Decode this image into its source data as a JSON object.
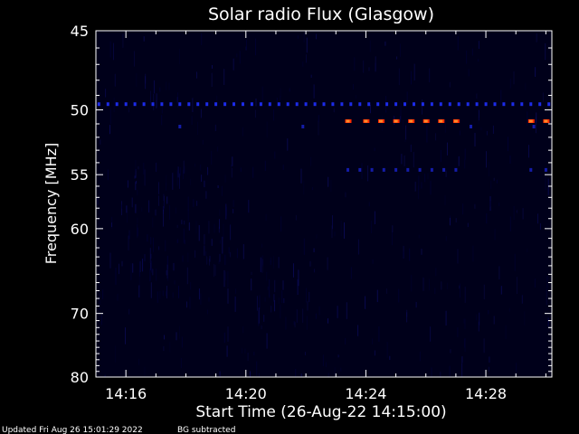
{
  "chart_data": {
    "type": "heatmap",
    "title": "Solar radio Flux (Glasgow)",
    "xlabel": "Start Time (26-Aug-22 14:15:00)",
    "ylabel": "Frequency [MHz]",
    "xlim_minutes_after_start": [
      0,
      15.2
    ],
    "ylim_mhz": [
      45,
      80
    ],
    "y_scale": "reciprocal",
    "y_ticks": [
      45,
      50,
      55,
      60,
      70,
      80
    ],
    "y_tick_labels": [
      "45",
      "50",
      "55",
      "60",
      "70",
      "80"
    ],
    "x_ticks_minutes_after_start": [
      1,
      5,
      9,
      13
    ],
    "x_tick_labels": [
      "14:16",
      "14:20",
      "14:24",
      "14:28"
    ],
    "colors": {
      "background": "#000000",
      "plot_floor": "#00001a",
      "faint_noise": "#000033",
      "channel_blue": "#1c2be8",
      "channel_blue_dim": "#141ca8",
      "burst_red": "#ff2a00",
      "burst_orange": "#ff8a2a",
      "axes": "#ffffff"
    },
    "series": [
      {
        "frequency_mhz": 49.6,
        "color": "channel_blue",
        "minutes_after_start": [
          0.1,
          0.4,
          0.7,
          1.0,
          1.3,
          1.6,
          1.9,
          2.2,
          2.5,
          2.8,
          3.1,
          3.4,
          3.7,
          4.0,
          4.3,
          4.6,
          4.9,
          5.2,
          5.5,
          5.8,
          6.1,
          6.4,
          6.7,
          7.0,
          7.3,
          7.6,
          7.9,
          8.2,
          8.5,
          8.8,
          9.1,
          9.4,
          9.7,
          10.0,
          10.3,
          10.6,
          10.9,
          11.2,
          11.5,
          11.8,
          12.1,
          12.4,
          12.7,
          13.0,
          13.3,
          13.6,
          13.9,
          14.2,
          14.5,
          14.8,
          15.1
        ]
      },
      {
        "frequency_mhz": 50.8,
        "color": "burst_orange",
        "minutes_after_start": [
          8.4,
          9.0,
          9.5,
          10.0,
          10.5,
          11.0,
          11.5,
          12.0,
          14.5,
          15.0
        ]
      },
      {
        "frequency_mhz": 54.6,
        "color": "channel_blue_dim",
        "minutes_after_start": [
          8.4,
          8.8,
          9.2,
          9.6,
          10.0,
          10.4,
          10.8,
          11.2,
          11.6,
          12.0,
          14.5,
          15.0
        ]
      },
      {
        "frequency_mhz": 51.2,
        "color": "channel_blue_dim",
        "minutes_after_start": [
          2.8,
          6.9,
          12.5,
          14.6
        ]
      }
    ],
    "noise_regions": [
      {
        "minutes_after_start": [
          1.0,
          4.5
        ],
        "frequency_mhz": [
          54,
          68
        ],
        "intensity": 0.55
      },
      {
        "minutes_after_start": [
          5.2,
          7.3
        ],
        "frequency_mhz": [
          62,
          72
        ],
        "intensity": 0.5
      },
      {
        "minutes_after_start": [
          12.0,
          13.0
        ],
        "frequency_mhz": [
          66,
          74
        ],
        "intensity": 0.35
      },
      {
        "minutes_after_start": [
          0.0,
          15.2
        ],
        "frequency_mhz": [
          45,
          80
        ],
        "intensity": 0.18
      }
    ]
  },
  "footer": {
    "updated": "Updated Fri Aug 26 15:01:29 2022",
    "bg_note": "BG subtracted"
  }
}
